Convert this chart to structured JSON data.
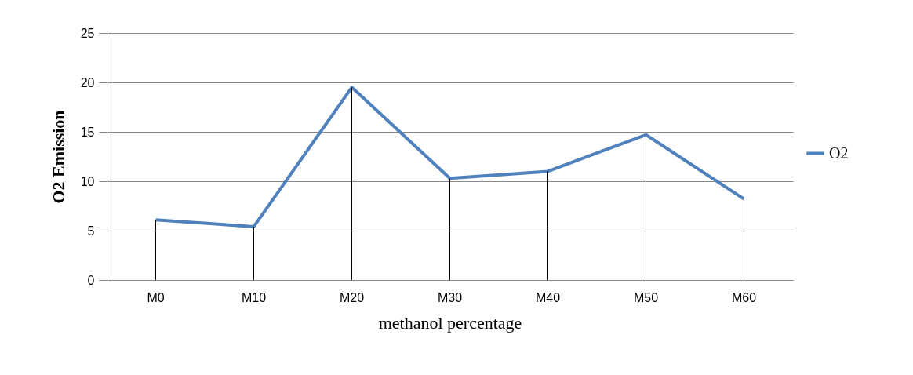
{
  "chart_data": {
    "type": "line",
    "xlabel": "methanol percentage",
    "ylabel": "O2 Emission",
    "categories": [
      "M0",
      "M10",
      "M20",
      "M30",
      "M40",
      "M50",
      "M60"
    ],
    "series": [
      {
        "name": "O2",
        "color": "#4f81bd",
        "values": [
          6.1,
          5.4,
          19.5,
          10.3,
          11.0,
          14.7,
          8.2
        ],
        "errors": [
          [
            0,
            6.1
          ],
          [
            0,
            5.4
          ],
          [
            0,
            19.5
          ],
          [
            0,
            10.3
          ],
          [
            0,
            11.0
          ],
          [
            0,
            14.7
          ],
          [
            0,
            8.2
          ]
        ]
      }
    ],
    "ylim": [
      0,
      25
    ],
    "yticks": [
      0,
      5,
      10,
      15,
      20,
      25
    ],
    "grid": "y",
    "legend": "right",
    "marker": "none",
    "line_style": "solid"
  }
}
